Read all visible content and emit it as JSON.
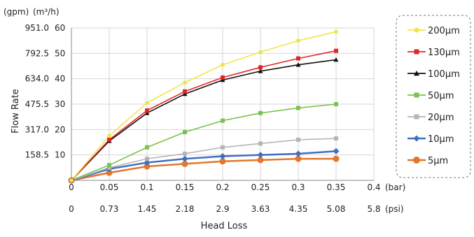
{
  "chart_data": {
    "type": "line",
    "title": "",
    "xlabel": "Head Loss",
    "ylabel": "Flow Rate",
    "y_unit_left": "(gpm)",
    "y_unit_right": "(m³/h)",
    "x_unit_bar": "(bar)",
    "x_unit_psi": "(psi)",
    "x_ticks_bar": [
      "0",
      "0.05",
      "0.1",
      "0.15",
      "0.2",
      "0.25",
      "0.3",
      "0.35",
      "0.4"
    ],
    "x_ticks_psi": [
      "0",
      "0.73",
      "1.45",
      "2.18",
      "2.9",
      "3.63",
      "4.35",
      "5.08",
      "5.8"
    ],
    "y_ticks_gpm": [
      "158.5",
      "317.0",
      "475.5",
      "634.0",
      "792.5",
      "951.0"
    ],
    "y_ticks_m3h": [
      "10",
      "20",
      "30",
      "40",
      "50",
      "60"
    ],
    "xlim": [
      0,
      0.4
    ],
    "ylim": [
      0,
      60
    ],
    "grid": true,
    "legend_position": "right",
    "x": [
      0,
      0.05,
      0.1,
      0.15,
      0.2,
      0.25,
      0.3,
      0.35
    ],
    "series": [
      {
        "name": "200μm",
        "color": "#f2e44a",
        "marker": "circle",
        "values": [
          0,
          17.5,
          30.5,
          38.5,
          45.5,
          50.5,
          55,
          58.5
        ]
      },
      {
        "name": "130μm",
        "color": "#e0282c",
        "marker": "square",
        "values": [
          0,
          16,
          27.5,
          35,
          40.5,
          44.5,
          48,
          51
        ]
      },
      {
        "name": "100μm",
        "color": "#111111",
        "marker": "triangle",
        "values": [
          0,
          15.5,
          26.5,
          34,
          39.5,
          43,
          45.5,
          47.5
        ]
      },
      {
        "name": "50μm",
        "color": "#7ac24a",
        "marker": "square",
        "values": [
          0,
          6,
          13,
          19,
          23.5,
          26.5,
          28.5,
          30
        ]
      },
      {
        "name": "20μm",
        "color": "#b5b5b5",
        "marker": "square",
        "values": [
          0,
          5,
          8.5,
          10.5,
          13,
          14.5,
          16,
          16.5
        ]
      },
      {
        "name": "10μm",
        "color": "#3f6fc2",
        "marker": "diamond",
        "values": [
          0,
          4.5,
          7,
          8.5,
          9.5,
          10,
          10.5,
          11.5
        ]
      },
      {
        "name": "5μm",
        "color": "#e4762d",
        "marker": "circle",
        "values": [
          0,
          3,
          5.5,
          6.5,
          7.5,
          8,
          8.5,
          8.5
        ]
      }
    ]
  }
}
